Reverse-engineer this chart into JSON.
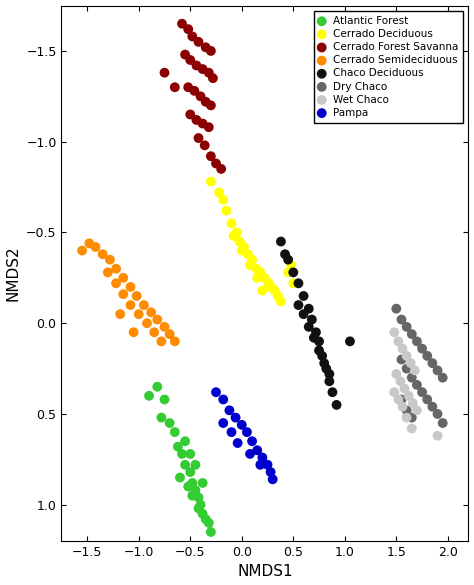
{
  "title": "",
  "xlabel": "NMDS1",
  "ylabel": "NMDS2",
  "xlim": [
    -1.75,
    2.2
  ],
  "ylim": [
    1.2,
    -1.75
  ],
  "xticks": [
    -1.5,
    -1.0,
    -0.5,
    0.0,
    0.5,
    1.0,
    1.5,
    2.0
  ],
  "yticks": [
    -1.5,
    -1.0,
    -0.5,
    0.0,
    0.5,
    1.0
  ],
  "groups": {
    "Atlantic Forest": {
      "color": "#33cc33",
      "points": [
        [
          -0.9,
          0.4
        ],
        [
          -0.82,
          0.35
        ],
        [
          -0.75,
          0.42
        ],
        [
          -0.78,
          0.52
        ],
        [
          -0.7,
          0.55
        ],
        [
          -0.65,
          0.6
        ],
        [
          -0.62,
          0.68
        ],
        [
          -0.58,
          0.72
        ],
        [
          -0.55,
          0.78
        ],
        [
          -0.5,
          0.82
        ],
        [
          -0.48,
          0.88
        ],
        [
          -0.45,
          0.92
        ],
        [
          -0.42,
          0.96
        ],
        [
          -0.4,
          1.0
        ],
        [
          -0.38,
          1.05
        ],
        [
          -0.35,
          1.08
        ],
        [
          -0.32,
          1.1
        ],
        [
          -0.3,
          1.15
        ],
        [
          -0.55,
          0.65
        ],
        [
          -0.5,
          0.72
        ],
        [
          -0.45,
          0.78
        ],
        [
          -0.6,
          0.85
        ],
        [
          -0.52,
          0.9
        ],
        [
          -0.48,
          0.95
        ],
        [
          -0.42,
          1.02
        ],
        [
          -0.38,
          0.88
        ]
      ]
    },
    "Cerrado Deciduous": {
      "color": "#ffff00",
      "points": [
        [
          -0.3,
          -0.78
        ],
        [
          -0.22,
          -0.72
        ],
        [
          -0.18,
          -0.68
        ],
        [
          -0.15,
          -0.62
        ],
        [
          -0.1,
          -0.55
        ],
        [
          -0.05,
          -0.5
        ],
        [
          -0.02,
          -0.45
        ],
        [
          0.02,
          -0.42
        ],
        [
          0.06,
          -0.38
        ],
        [
          0.1,
          -0.35
        ],
        [
          0.14,
          -0.3
        ],
        [
          0.18,
          -0.28
        ],
        [
          0.22,
          -0.25
        ],
        [
          0.26,
          -0.22
        ],
        [
          0.28,
          -0.2
        ],
        [
          0.32,
          -0.18
        ],
        [
          0.35,
          -0.15
        ],
        [
          0.38,
          -0.12
        ],
        [
          -0.08,
          -0.48
        ],
        [
          0.0,
          -0.4
        ],
        [
          0.08,
          -0.32
        ],
        [
          0.15,
          -0.25
        ],
        [
          0.2,
          -0.18
        ],
        [
          0.45,
          -0.28
        ],
        [
          0.48,
          -0.32
        ],
        [
          0.5,
          -0.22
        ]
      ]
    },
    "Cerrado Forest Savanna": {
      "color": "#8b0000",
      "points": [
        [
          -0.58,
          -1.65
        ],
        [
          -0.52,
          -1.62
        ],
        [
          -0.48,
          -1.58
        ],
        [
          -0.42,
          -1.55
        ],
        [
          -0.35,
          -1.52
        ],
        [
          -0.3,
          -1.5
        ],
        [
          -0.55,
          -1.48
        ],
        [
          -0.5,
          -1.45
        ],
        [
          -0.44,
          -1.42
        ],
        [
          -0.38,
          -1.4
        ],
        [
          -0.32,
          -1.38
        ],
        [
          -0.28,
          -1.35
        ],
        [
          -0.52,
          -1.3
        ],
        [
          -0.46,
          -1.28
        ],
        [
          -0.4,
          -1.25
        ],
        [
          -0.35,
          -1.22
        ],
        [
          -0.3,
          -1.2
        ],
        [
          -0.5,
          -1.15
        ],
        [
          -0.44,
          -1.12
        ],
        [
          -0.38,
          -1.1
        ],
        [
          -0.32,
          -1.08
        ],
        [
          -0.42,
          -1.02
        ],
        [
          -0.36,
          -0.98
        ],
        [
          -0.3,
          -0.92
        ],
        [
          -0.25,
          -0.88
        ],
        [
          -0.75,
          -1.38
        ],
        [
          -0.65,
          -1.3
        ],
        [
          -0.2,
          -0.85
        ]
      ]
    },
    "Cerrado Semideciduous": {
      "color": "#ff8c00",
      "points": [
        [
          -1.55,
          -0.4
        ],
        [
          -1.48,
          -0.44
        ],
        [
          -1.42,
          -0.42
        ],
        [
          -1.35,
          -0.38
        ],
        [
          -1.28,
          -0.35
        ],
        [
          -1.22,
          -0.3
        ],
        [
          -1.15,
          -0.25
        ],
        [
          -1.08,
          -0.2
        ],
        [
          -1.02,
          -0.15
        ],
        [
          -0.95,
          -0.1
        ],
        [
          -0.88,
          -0.06
        ],
        [
          -0.82,
          -0.02
        ],
        [
          -0.75,
          0.02
        ],
        [
          -0.7,
          0.06
        ],
        [
          -0.65,
          0.1
        ],
        [
          -1.3,
          -0.28
        ],
        [
          -1.22,
          -0.22
        ],
        [
          -1.15,
          -0.16
        ],
        [
          -1.08,
          -0.1
        ],
        [
          -1.0,
          -0.05
        ],
        [
          -0.92,
          0.0
        ],
        [
          -0.85,
          0.05
        ],
        [
          -0.78,
          0.1
        ],
        [
          -1.18,
          -0.05
        ],
        [
          -1.05,
          0.05
        ]
      ]
    },
    "Chaco Deciduous": {
      "color": "#111111",
      "points": [
        [
          0.38,
          -0.45
        ],
        [
          0.45,
          -0.35
        ],
        [
          0.5,
          -0.28
        ],
        [
          0.55,
          -0.22
        ],
        [
          0.6,
          -0.15
        ],
        [
          0.65,
          -0.08
        ],
        [
          0.68,
          -0.02
        ],
        [
          0.72,
          0.05
        ],
        [
          0.75,
          0.1
        ],
        [
          0.78,
          0.18
        ],
        [
          0.82,
          0.25
        ],
        [
          0.85,
          0.32
        ],
        [
          0.88,
          0.38
        ],
        [
          0.92,
          0.45
        ],
        [
          0.55,
          -0.1
        ],
        [
          0.6,
          -0.05
        ],
        [
          0.65,
          0.02
        ],
        [
          0.7,
          0.08
        ],
        [
          0.75,
          0.15
        ],
        [
          0.8,
          0.22
        ],
        [
          0.85,
          0.28
        ],
        [
          1.05,
          0.1
        ],
        [
          0.42,
          -0.38
        ]
      ]
    },
    "Dry Chaco": {
      "color": "#666666",
      "points": [
        [
          1.5,
          -0.08
        ],
        [
          1.55,
          -0.02
        ],
        [
          1.6,
          0.02
        ],
        [
          1.65,
          0.06
        ],
        [
          1.7,
          0.1
        ],
        [
          1.75,
          0.14
        ],
        [
          1.8,
          0.18
        ],
        [
          1.85,
          0.22
        ],
        [
          1.9,
          0.26
        ],
        [
          1.95,
          0.3
        ],
        [
          1.55,
          0.2
        ],
        [
          1.6,
          0.25
        ],
        [
          1.65,
          0.3
        ],
        [
          1.7,
          0.34
        ],
        [
          1.75,
          0.38
        ],
        [
          1.8,
          0.42
        ],
        [
          1.85,
          0.46
        ],
        [
          1.9,
          0.5
        ],
        [
          1.95,
          0.55
        ],
        [
          1.55,
          0.42
        ],
        [
          1.6,
          0.48
        ],
        [
          1.65,
          0.52
        ]
      ]
    },
    "Wet Chaco": {
      "color": "#c8c8c8",
      "points": [
        [
          1.48,
          0.05
        ],
        [
          1.52,
          0.1
        ],
        [
          1.56,
          0.14
        ],
        [
          1.6,
          0.18
        ],
        [
          1.64,
          0.22
        ],
        [
          1.68,
          0.26
        ],
        [
          1.5,
          0.28
        ],
        [
          1.54,
          0.32
        ],
        [
          1.58,
          0.36
        ],
        [
          1.62,
          0.4
        ],
        [
          1.66,
          0.44
        ],
        [
          1.7,
          0.48
        ],
        [
          1.48,
          0.38
        ],
        [
          1.52,
          0.42
        ],
        [
          1.56,
          0.46
        ],
        [
          1.6,
          0.52
        ],
        [
          1.65,
          0.58
        ],
        [
          1.9,
          0.62
        ]
      ]
    },
    "Pampa": {
      "color": "#0000cc",
      "points": [
        [
          -0.25,
          0.38
        ],
        [
          -0.18,
          0.42
        ],
        [
          -0.12,
          0.48
        ],
        [
          -0.06,
          0.52
        ],
        [
          0.0,
          0.56
        ],
        [
          0.05,
          0.6
        ],
        [
          0.1,
          0.65
        ],
        [
          0.15,
          0.7
        ],
        [
          0.2,
          0.74
        ],
        [
          0.25,
          0.78
        ],
        [
          0.28,
          0.82
        ],
        [
          0.3,
          0.86
        ],
        [
          -0.18,
          0.55
        ],
        [
          -0.1,
          0.6
        ],
        [
          -0.04,
          0.66
        ],
        [
          0.08,
          0.72
        ],
        [
          0.18,
          0.78
        ]
      ]
    }
  }
}
